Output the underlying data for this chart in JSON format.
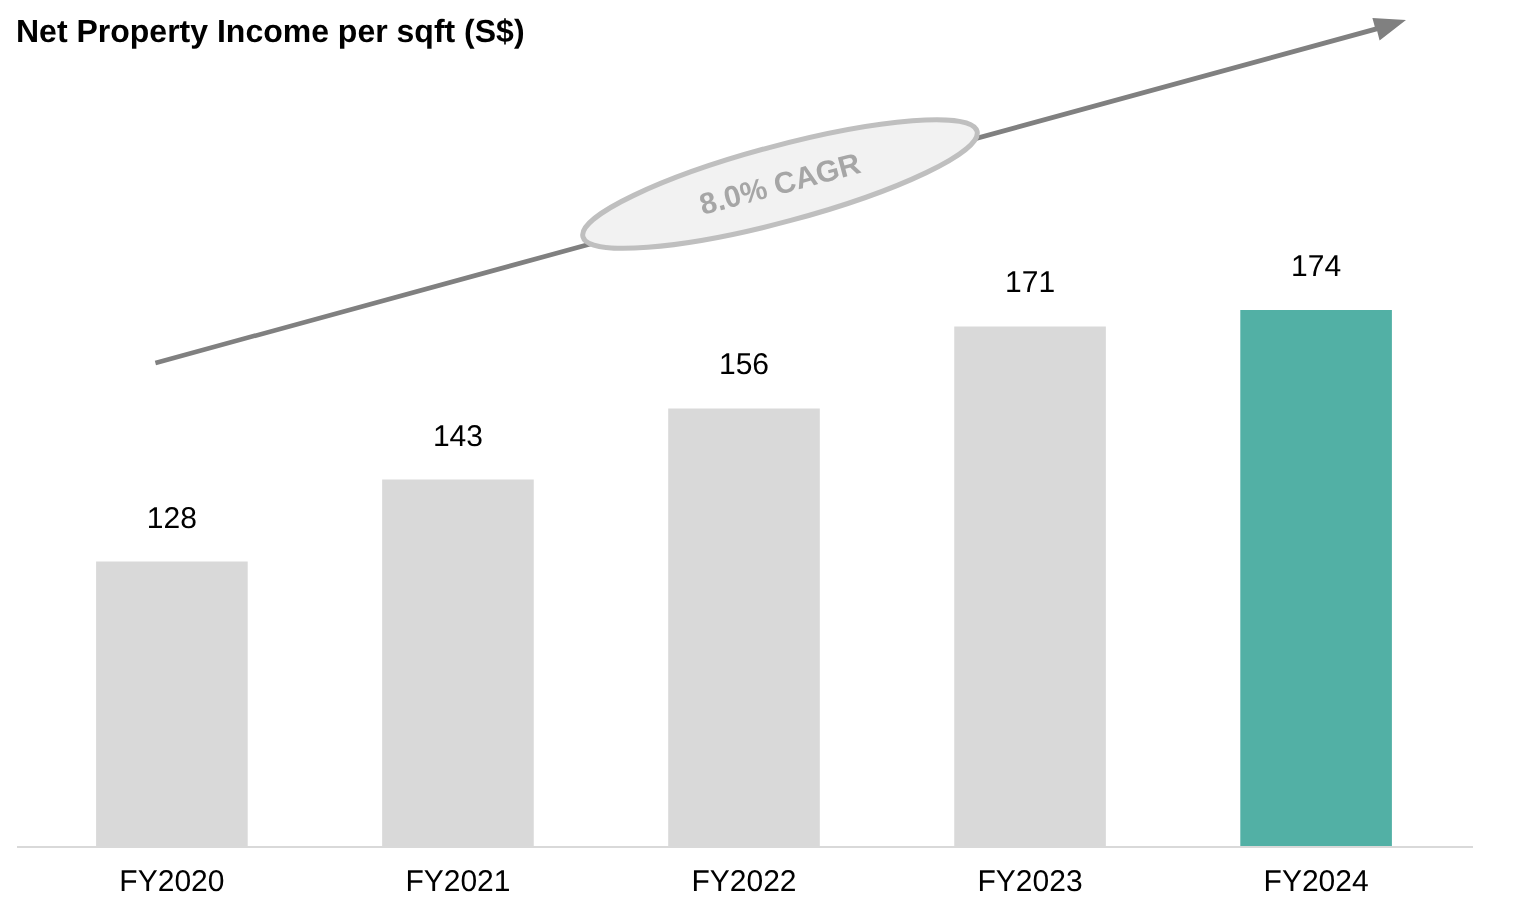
{
  "chart_data": {
    "type": "bar",
    "title": "Net Property Income per sqft (S$)",
    "categories": [
      "FY2020",
      "FY2021",
      "FY2022",
      "FY2023",
      "FY2024"
    ],
    "values": [
      128,
      143,
      156,
      171,
      174
    ],
    "colors": [
      "#d9d9d9",
      "#d9d9d9",
      "#d9d9d9",
      "#d9d9d9",
      "#52b0a5"
    ],
    "ylim": [
      76,
      174
    ],
    "data_labels": true,
    "grid": false,
    "annotations": [
      "8.0% CAGR"
    ]
  }
}
